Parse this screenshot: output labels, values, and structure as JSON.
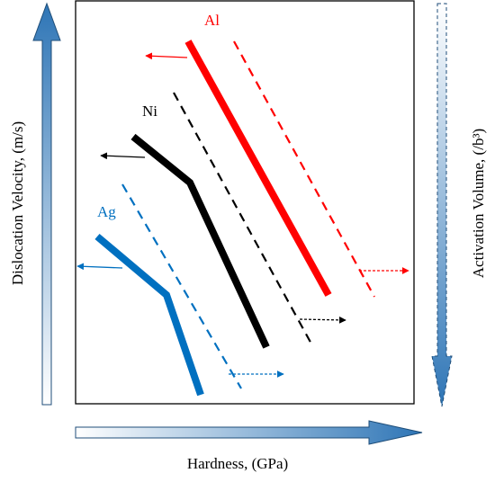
{
  "axes": {
    "x_label": "Hardness, (GPa)",
    "y_left_label": "Dislocation Velocity, (m/s)",
    "y_right_label": "Activation Volume, (/b³)"
  },
  "series": [
    {
      "key": "al",
      "label": "Al",
      "color": "#ff0000"
    },
    {
      "key": "ni",
      "label": "Ni",
      "color": "#000000"
    },
    {
      "key": "ag",
      "label": "Ag",
      "color": "#0070c0"
    }
  ],
  "colors": {
    "arrow_blue": "#2e75b6",
    "frame": "#000000"
  },
  "icons": {
    "left_axis": "arrow-up-gradient-icon",
    "right_axis": "arrow-down-dashed-gradient-icon",
    "bottom_axis": "arrow-right-gradient-icon"
  }
}
